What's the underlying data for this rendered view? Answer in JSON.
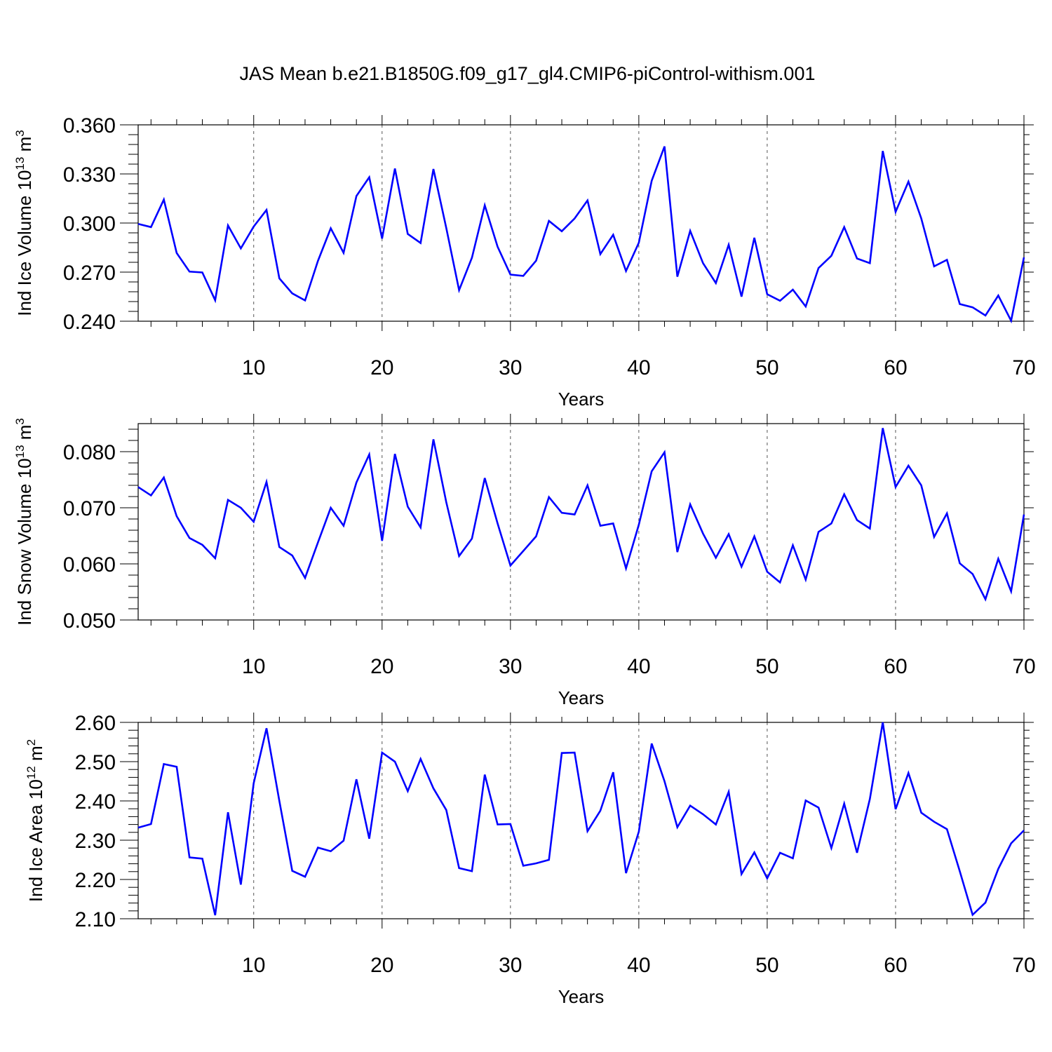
{
  "title": "JAS Mean b.e21.B1850G.f09_g17_gl4.CMIP6-piControl-withism.001",
  "colors": {
    "line": "#0000ff",
    "axis": "#000000",
    "grid": "#555555"
  },
  "chart_data": [
    {
      "type": "line",
      "ylabel_main": "Ind Ice Volume 10",
      "ylabel_exp": "13",
      "ylabel_unit": " m",
      "ylabel_unit_exp": "3",
      "xlabel": "Years",
      "xlim": [
        1,
        70
      ],
      "ylim": [
        0.24,
        0.36
      ],
      "yticks": [
        0.24,
        0.27,
        0.3,
        0.33,
        0.36
      ],
      "ytick_labels": [
        "0.240",
        "0.270",
        "0.300",
        "0.330",
        "0.360"
      ],
      "xticks": [
        10,
        20,
        30,
        40,
        50,
        60,
        70
      ],
      "xtick_labels": [
        "10",
        "20",
        "30",
        "40",
        "50",
        "60",
        "70"
      ],
      "grid_x": [
        10,
        20,
        30,
        40,
        50,
        60
      ],
      "y": [
        0.2995,
        0.2975,
        0.3143,
        0.2817,
        0.2703,
        0.2698,
        0.2528,
        0.2985,
        0.2845,
        0.2978,
        0.308,
        0.2662,
        0.257,
        0.2527,
        0.2768,
        0.2968,
        0.2818,
        0.3165,
        0.328,
        0.2905,
        0.3333,
        0.2933,
        0.2878,
        0.333,
        0.297,
        0.259,
        0.2788,
        0.3108,
        0.2855,
        0.2685,
        0.2677,
        0.277,
        0.3013,
        0.295,
        0.3028,
        0.3138,
        0.281,
        0.2928,
        0.2707,
        0.288,
        0.3258,
        0.3468,
        0.2672,
        0.2952,
        0.2755,
        0.2633,
        0.2867,
        0.255,
        0.291,
        0.2565,
        0.2525,
        0.2593,
        0.249,
        0.2725,
        0.28,
        0.2975,
        0.2783,
        0.2755,
        0.344,
        0.3068,
        0.3253,
        0.3028,
        0.2735,
        0.2775,
        0.2505,
        0.2485,
        0.2435,
        0.2557,
        0.2403,
        0.279
      ]
    },
    {
      "type": "line",
      "ylabel_main": "Ind Snow Volume 10",
      "ylabel_exp": "13",
      "ylabel_unit": " m",
      "ylabel_unit_exp": "3",
      "xlabel": "Years",
      "xlim": [
        1,
        70
      ],
      "ylim": [
        0.05,
        0.085
      ],
      "yticks": [
        0.05,
        0.06,
        0.07,
        0.08
      ],
      "ytick_labels": [
        "0.050",
        "0.060",
        "0.070",
        "0.080"
      ],
      "xticks": [
        10,
        20,
        30,
        40,
        50,
        60,
        70
      ],
      "xtick_labels": [
        "10",
        "20",
        "30",
        "40",
        "50",
        "60",
        "70"
      ],
      "grid_x": [
        10,
        20,
        30,
        40,
        50,
        60
      ],
      "y": [
        0.0737,
        0.0722,
        0.0754,
        0.0685,
        0.0646,
        0.0634,
        0.061,
        0.0714,
        0.07,
        0.0675,
        0.0746,
        0.063,
        0.0615,
        0.0575,
        0.0638,
        0.07,
        0.0668,
        0.0745,
        0.0795,
        0.0641,
        0.0796,
        0.0702,
        0.0665,
        0.0822,
        0.071,
        0.0614,
        0.0645,
        0.0753,
        0.0672,
        0.0597,
        0.0623,
        0.0649,
        0.0719,
        0.0691,
        0.0688,
        0.074,
        0.0668,
        0.0672,
        0.0592,
        0.067,
        0.0765,
        0.0799,
        0.0621,
        0.0706,
        0.0654,
        0.0611,
        0.0653,
        0.0595,
        0.0649,
        0.0586,
        0.0567,
        0.0633,
        0.0572,
        0.0657,
        0.0672,
        0.0724,
        0.0678,
        0.0663,
        0.0842,
        0.0737,
        0.0775,
        0.074,
        0.0648,
        0.069,
        0.0601,
        0.0582,
        0.0537,
        0.0609,
        0.0551,
        0.0688
      ]
    },
    {
      "type": "line",
      "ylabel_main": "Ind Ice Area 10",
      "ylabel_exp": "12",
      "ylabel_unit": " m",
      "ylabel_unit_exp": "2",
      "xlabel": "Years",
      "xlim": [
        1,
        70
      ],
      "ylim": [
        2.1,
        2.6
      ],
      "yticks": [
        2.1,
        2.2,
        2.3,
        2.4,
        2.5,
        2.6
      ],
      "ytick_labels": [
        "2.10",
        "2.20",
        "2.30",
        "2.40",
        "2.50",
        "2.60"
      ],
      "xticks": [
        10,
        20,
        30,
        40,
        50,
        60,
        70
      ],
      "xtick_labels": [
        "10",
        "20",
        "30",
        "40",
        "50",
        "60",
        "70"
      ],
      "grid_x": [
        10,
        20,
        30,
        40,
        50,
        60
      ],
      "y": [
        2.332,
        2.341,
        2.494,
        2.487,
        2.256,
        2.253,
        2.109,
        2.371,
        2.187,
        2.445,
        2.585,
        2.4,
        2.222,
        2.207,
        2.281,
        2.272,
        2.299,
        2.455,
        2.304,
        2.523,
        2.5,
        2.425,
        2.507,
        2.432,
        2.377,
        2.229,
        2.221,
        2.467,
        2.34,
        2.341,
        2.235,
        2.241,
        2.25,
        2.522,
        2.523,
        2.323,
        2.375,
        2.473,
        2.216,
        2.322,
        2.546,
        2.45,
        2.333,
        2.388,
        2.366,
        2.34,
        2.423,
        2.214,
        2.269,
        2.203,
        2.268,
        2.254,
        2.401,
        2.383,
        2.28,
        2.393,
        2.268,
        2.405,
        2.6,
        2.379,
        2.471,
        2.37,
        2.347,
        2.328,
        2.221,
        2.11,
        2.141,
        2.227,
        2.292,
        2.325
      ]
    }
  ]
}
